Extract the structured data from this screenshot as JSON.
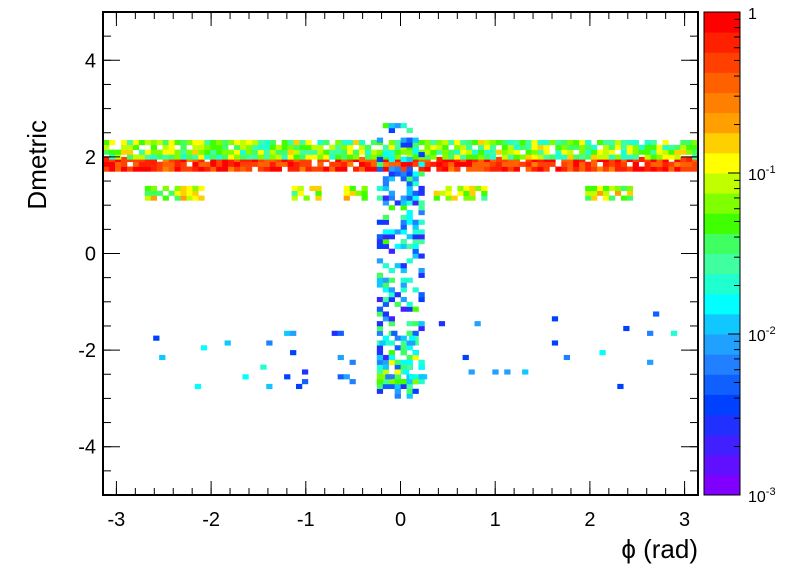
{
  "chart_data": {
    "type": "heatmap",
    "xlabel": "ϕ (rad)",
    "ylabel": "Dmetric",
    "xlim": [
      -3.1416,
      3.1416
    ],
    "ylim": [
      -5,
      5
    ],
    "x_ticks": [
      -3,
      -2,
      -1,
      0,
      1,
      2,
      3
    ],
    "y_ticks": [
      -4,
      -2,
      0,
      2,
      4
    ],
    "colorbar": {
      "scale": "log",
      "range": [
        0.001,
        1
      ],
      "tick_labels": [
        {
          "value": 1,
          "base": "1",
          "exp": ""
        },
        {
          "value": 0.1,
          "base": "10",
          "exp": "-1"
        },
        {
          "value": 0.01,
          "base": "10",
          "exp": "-2"
        },
        {
          "value": 0.001,
          "base": "10",
          "exp": "-3"
        }
      ],
      "palette": [
        "#8000ff",
        "#6010ff",
        "#4020ff",
        "#2030ff",
        "#0040ff",
        "#1060ff",
        "#2080ff",
        "#20a0ff",
        "#10c8ff",
        "#00ffff",
        "#20ffd0",
        "#40ffa0",
        "#40ff60",
        "#40ff00",
        "#80ff00",
        "#c0ff00",
        "#ffff00",
        "#ffd000",
        "#ffa000",
        "#ff8000",
        "#ff6000",
        "#ff4000",
        "#ff2000",
        "#ff0000"
      ]
    },
    "bands": [
      {
        "y_range": [
          1.7,
          2.0
        ],
        "x_range": [
          -3.14,
          3.14
        ],
        "intensity": [
          0.3,
          1.0
        ],
        "description": "dense horizontal band"
      },
      {
        "y_range": [
          1.95,
          2.3
        ],
        "x_range": [
          -3.14,
          3.14
        ],
        "intensity": [
          0.02,
          0.15
        ]
      },
      {
        "y_range": [
          1.1,
          1.35
        ],
        "x_range": [
          -2.7,
          -2.1
        ],
        "intensity": [
          0.03,
          0.2
        ]
      },
      {
        "y_range": [
          1.1,
          1.35
        ],
        "x_range": [
          -1.15,
          -0.85
        ],
        "intensity": [
          0.03,
          0.2
        ]
      },
      {
        "y_range": [
          1.1,
          1.35
        ],
        "x_range": [
          -0.6,
          -0.35
        ],
        "intensity": [
          0.03,
          0.2
        ]
      },
      {
        "y_range": [
          1.1,
          1.35
        ],
        "x_range": [
          0.35,
          0.9
        ],
        "intensity": [
          0.03,
          0.2
        ]
      },
      {
        "y_range": [
          1.1,
          1.35
        ],
        "x_range": [
          1.95,
          2.4
        ],
        "intensity": [
          0.03,
          0.2
        ]
      },
      {
        "y_range": [
          -3.0,
          2.7
        ],
        "x_range": [
          -0.25,
          0.25
        ],
        "intensity": [
          0.002,
          0.05
        ],
        "description": "vertical column near phi=0"
      },
      {
        "y_range": [
          -2.7,
          -2.0
        ],
        "x_range": [
          -0.25,
          0.25
        ],
        "intensity": [
          0.01,
          0.12
        ]
      },
      {
        "y_range": [
          -2.8,
          -1.2
        ],
        "x_range": [
          -2.8,
          3.0
        ],
        "intensity": [
          0.002,
          0.02
        ],
        "description": "sparse scatter"
      }
    ]
  }
}
